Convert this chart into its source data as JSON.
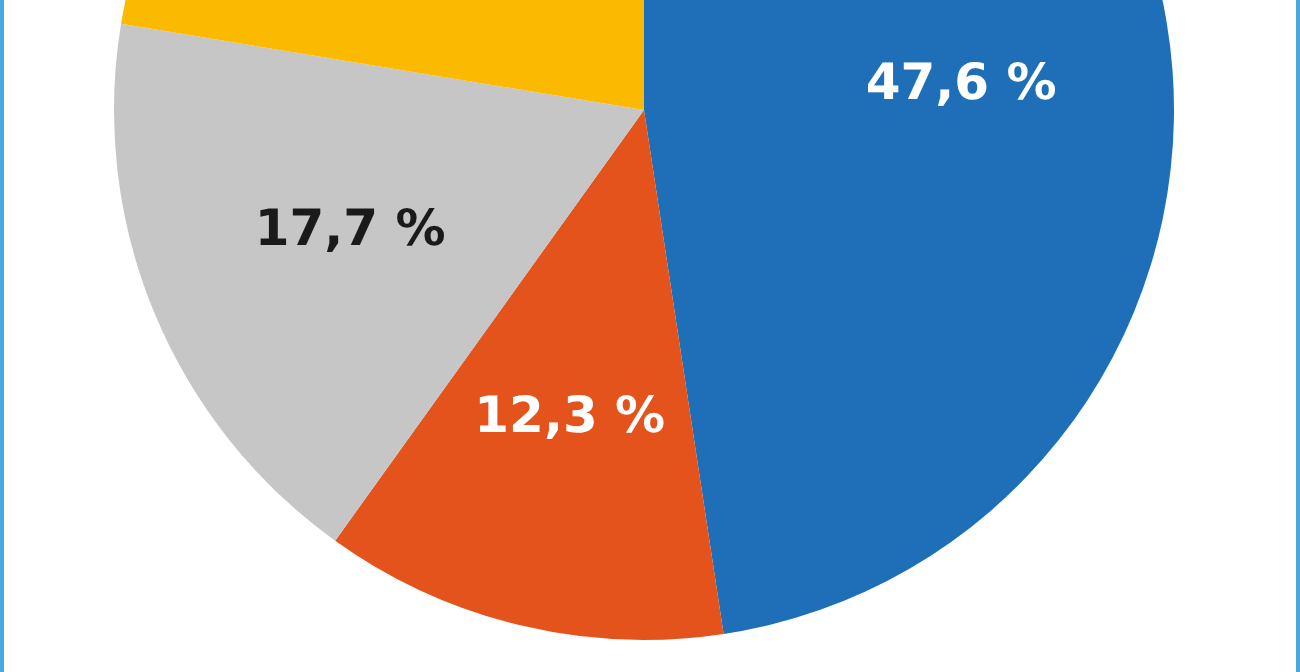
{
  "chart_data": {
    "type": "pie",
    "categories": [
      null,
      null,
      null,
      null
    ],
    "values": [
      47.6,
      12.3,
      17.7,
      22.4
    ],
    "colors": [
      "#1e6fb8",
      "#e4531b",
      "#c6c6c6",
      "#fbb900"
    ],
    "value_labels": [
      "47,6 %",
      "12,3 %",
      "17,7 %",
      null
    ],
    "legend": false
  }
}
